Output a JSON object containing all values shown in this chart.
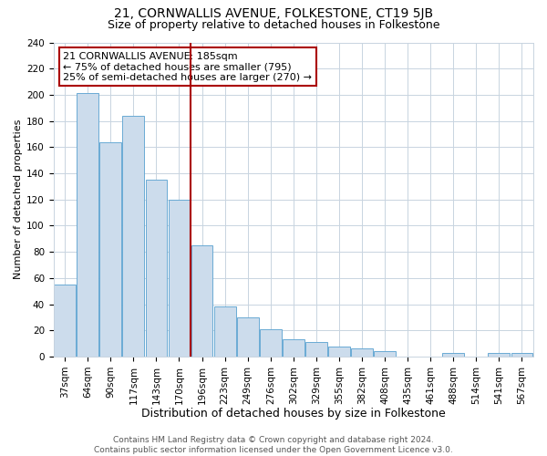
{
  "title": "21, CORNWALLIS AVENUE, FOLKESTONE, CT19 5JB",
  "subtitle": "Size of property relative to detached houses in Folkestone",
  "xlabel": "Distribution of detached houses by size in Folkestone",
  "ylabel": "Number of detached properties",
  "footer_line1": "Contains HM Land Registry data © Crown copyright and database right 2024.",
  "footer_line2": "Contains public sector information licensed under the Open Government Licence v3.0.",
  "bin_labels": [
    "37sqm",
    "64sqm",
    "90sqm",
    "117sqm",
    "143sqm",
    "170sqm",
    "196sqm",
    "223sqm",
    "249sqm",
    "276sqm",
    "302sqm",
    "329sqm",
    "355sqm",
    "382sqm",
    "408sqm",
    "435sqm",
    "461sqm",
    "488sqm",
    "514sqm",
    "541sqm",
    "567sqm"
  ],
  "bar_values": [
    55,
    201,
    164,
    184,
    135,
    120,
    85,
    38,
    30,
    21,
    13,
    11,
    8,
    6,
    4,
    0,
    0,
    3,
    0,
    3,
    3
  ],
  "bar_color": "#ccdcec",
  "bar_edgecolor": "#6aaad4",
  "vline_pos": 5.5,
  "vline_color": "#aa0000",
  "annotation_text": "21 CORNWALLIS AVENUE: 185sqm\n← 75% of detached houses are smaller (795)\n25% of semi-detached houses are larger (270) →",
  "annotation_box_edgecolor": "#aa0000",
  "ylim": [
    0,
    240
  ],
  "yticks": [
    0,
    20,
    40,
    60,
    80,
    100,
    120,
    140,
    160,
    180,
    200,
    220,
    240
  ],
  "background_color": "#ffffff",
  "grid_color": "#c8d4e0",
  "title_fontsize": 10,
  "subtitle_fontsize": 9,
  "xlabel_fontsize": 9,
  "ylabel_fontsize": 8,
  "tick_fontsize": 7.5,
  "annotation_fontsize": 8,
  "footer_fontsize": 6.5
}
